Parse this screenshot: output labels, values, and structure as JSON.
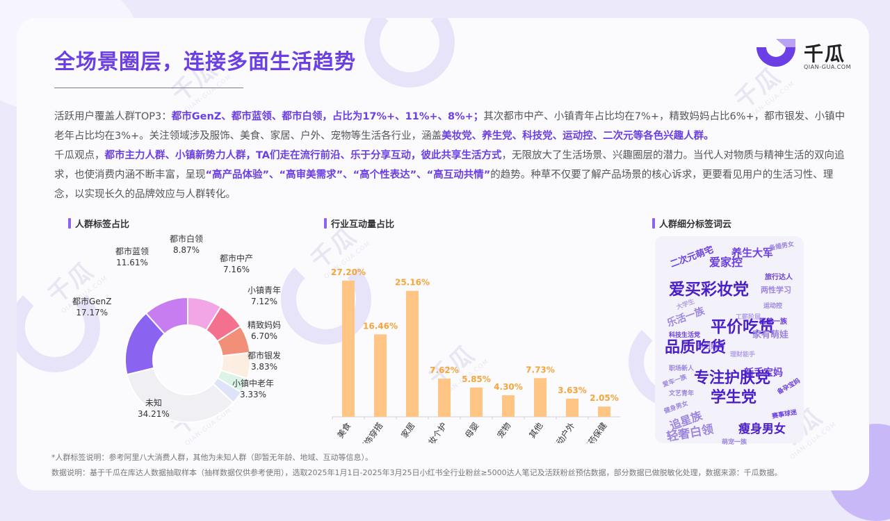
{
  "page": {
    "title": "全场景圈层，连接多面生活趋势",
    "logo": {
      "cn": "千瓜",
      "en": "QIAN-GUA.COM"
    },
    "watermark": {
      "cn": "千瓜",
      "en": "QIAN-GUA.COM"
    }
  },
  "paragraph1": {
    "p1": "活跃用户覆盖人群TOP3：",
    "h1": "都市GenZ、都市蓝领、都市白领，占比为17%+、11%+、8%+；",
    "p2": "其次都市中产、小镇青年占比均在7%+，精致妈妈占比6%+，都市银发、小镇中老年占比均在3%+。关注领域涉及服饰、美食、家居、户外、宠物等生活各行业，涵盖",
    "h2": "美妆党、养生党、科技党、运动控、二次元等各色兴趣人群。"
  },
  "paragraph2": {
    "p1": "千瓜观点，",
    "h1": "都市主力人群、小镇新势力人群，TA们走在流行前沿、乐于分享互动，彼此共享生活方式",
    "p2": "，无限放大了生活场景、兴趣圈层的潜力。当代人对物质与精神生活的双向追求，也使消费内涵不断丰富，呈现",
    "h2": "“高产品体验”、“高审美需求”、“高个性表达”、“高互动共情”",
    "p3": "的趋势。种草不仅要了解产品场景的核心诉求，更要看见用户的生活习性、理念，以实现长久的品牌效应与人群转化。"
  },
  "sections": {
    "pie": "人群标签占比",
    "bar": "行业互动量占比",
    "cloud": "人群细分标签词云"
  },
  "chart_data": [
    {
      "type": "pie",
      "donut": true,
      "title": "人群标签占比",
      "slices": [
        {
          "label": "都市白领",
          "value": 8.87,
          "display": "8.87%",
          "color": "#f2a6e6"
        },
        {
          "label": "都市中产",
          "value": 7.16,
          "display": "7.16%",
          "color": "#f4708f"
        },
        {
          "label": "小镇青年",
          "value": 7.12,
          "display": "7.12%",
          "color": "#f28f79"
        },
        {
          "label": "精致妈妈",
          "value": 6.7,
          "display": "6.70%",
          "color": "#fdeee2"
        },
        {
          "label": "都市银发",
          "value": 3.83,
          "display": "3.83%",
          "color": "#dcf3e8"
        },
        {
          "label": "小镇中老年",
          "value": 3.33,
          "display": "3.33%",
          "color": "#dfe3f7"
        },
        {
          "label": "未知",
          "value": 34.21,
          "display": "34.21%",
          "color": "#f0f0f4"
        },
        {
          "label": "都市GenZ",
          "value": 17.17,
          "display": "17.17%",
          "color": "#8b63f1"
        },
        {
          "label": "都市蓝领",
          "value": 11.61,
          "display": "11.61%",
          "color": "#c77df0"
        }
      ]
    },
    {
      "type": "bar",
      "title": "行业互动量占比",
      "categories": [
        "美食",
        "服饰穿搭",
        "家居",
        "美妆个护",
        "母婴",
        "宠物",
        "其他",
        "运动户外",
        "医药保健"
      ],
      "values": [
        27.2,
        16.46,
        25.16,
        7.62,
        5.85,
        4.3,
        7.73,
        3.63,
        2.05
      ],
      "value_labels": [
        "27.20%",
        "16.46%",
        "25.16%",
        "7.62%",
        "5.85%",
        "4.30%",
        "7.73%",
        "3.63%",
        "2.05%"
      ],
      "ylim": [
        0,
        30
      ],
      "color": "#ffc585",
      "label_color": "#f5a53b",
      "grid": false
    }
  ],
  "word_cloud": [
    {
      "text": "二次元萌宅",
      "color": "#6b3fe3",
      "size": 13
    },
    {
      "text": "养生大军",
      "color": "#6b3fe3",
      "size": 15
    },
    {
      "text": "备婚男女",
      "color": "#9d86e0",
      "size": 9
    },
    {
      "text": "爱家控",
      "color": "#6b3fe3",
      "size": 16
    },
    {
      "text": "旅行达人",
      "color": "#6b3fe3",
      "size": 10
    },
    {
      "text": "爱买彩妆党",
      "color": "#4a1fc9",
      "size": 23
    },
    {
      "text": "两性学习",
      "color": "#9d86e0",
      "size": 11
    },
    {
      "text": "大学生",
      "color": "#b3a3e8",
      "size": 9
    },
    {
      "text": "运动控",
      "color": "#9d86e0",
      "size": 9
    },
    {
      "text": "乐活一族",
      "color": "#9d86e0",
      "size": 14
    },
    {
      "text": "工薪阶层",
      "color": "#b3a3e8",
      "size": 9
    },
    {
      "text": "医美一族",
      "color": "#6b3fe3",
      "size": 10
    },
    {
      "text": "科技生活党",
      "color": "#6b3fe3",
      "size": 9
    },
    {
      "text": "平价吃货",
      "color": "#4a1fc9",
      "size": 23
    },
    {
      "text": "家有萌娃",
      "color": "#9d86e0",
      "size": 13
    },
    {
      "text": "孕妇妈妈",
      "color": "#9d86e0",
      "size": 10
    },
    {
      "text": "品质吃货",
      "color": "#4a1fc9",
      "size": 22
    },
    {
      "text": "理财能手",
      "color": "#b3a3e8",
      "size": 9
    },
    {
      "text": "职场新人",
      "color": "#9d86e0",
      "size": 9
    },
    {
      "text": "新手宝妈",
      "color": "#6b3fe3",
      "size": 14
    },
    {
      "text": "爱车一族",
      "color": "#9d86e0",
      "size": 9
    },
    {
      "text": "专注护肤党",
      "color": "#4a1fc9",
      "size": 22
    },
    {
      "text": "备孕宝妈",
      "color": "#6b3fe3",
      "size": 9
    },
    {
      "text": "文艺青年",
      "color": "#9d86e0",
      "size": 9
    },
    {
      "text": "健身男女",
      "color": "#9d86e0",
      "size": 9
    },
    {
      "text": "学生党",
      "color": "#4a1fc9",
      "size": 22
    },
    {
      "text": "赛事球迷",
      "color": "#6b3fe3",
      "size": 9
    },
    {
      "text": "追星族",
      "color": "#9d86e0",
      "size": 16
    },
    {
      "text": "轻奢白领",
      "color": "#9d86e0",
      "size": 17
    },
    {
      "text": "萌宠一族",
      "color": "#9d86e0",
      "size": 9
    },
    {
      "text": "瘦身男女",
      "color": "#4a1fc9",
      "size": 17
    }
  ],
  "footer": {
    "note": "*人群标签说明：参考阿里八大消费人群，其他为未知人群（即暂无年龄、地域、互动等信息）。",
    "source": "数据说明：基于千瓜在库达人数据抽取样本（抽样数据仅供参考使用），选取2025年1月1日-2025年3月25日小红书全行业粉丝≥5000达人笔记及活跃粉丝预估数据，部分数据已做脱敏化处理，数据来源：千瓜数据。"
  }
}
